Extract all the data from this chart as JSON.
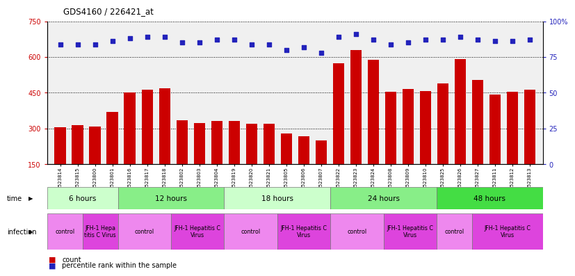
{
  "title": "GDS4160 / 226421_at",
  "samples": [
    "GSM523814",
    "GSM523815",
    "GSM523800",
    "GSM523801",
    "GSM523816",
    "GSM523817",
    "GSM523818",
    "GSM523802",
    "GSM523803",
    "GSM523804",
    "GSM523819",
    "GSM523820",
    "GSM523821",
    "GSM523805",
    "GSM523806",
    "GSM523807",
    "GSM523822",
    "GSM523823",
    "GSM523824",
    "GSM523808",
    "GSM523809",
    "GSM523810",
    "GSM523825",
    "GSM523826",
    "GSM523827",
    "GSM523811",
    "GSM523812",
    "GSM523813"
  ],
  "counts": [
    305,
    315,
    308,
    370,
    450,
    462,
    468,
    335,
    322,
    332,
    330,
    320,
    320,
    280,
    268,
    250,
    575,
    628,
    588,
    455,
    465,
    458,
    490,
    592,
    505,
    443,
    455,
    463
  ],
  "percentile": [
    84,
    84,
    84,
    86,
    88,
    89,
    89,
    85,
    85,
    87,
    87,
    84,
    84,
    80,
    82,
    78,
    89,
    91,
    87,
    84,
    85,
    87,
    87,
    89,
    87,
    86,
    86,
    87
  ],
  "time_groups": [
    {
      "label": "6 hours",
      "start": 0,
      "end": 4,
      "color": "#ccffcc"
    },
    {
      "label": "12 hours",
      "start": 4,
      "end": 10,
      "color": "#88ee88"
    },
    {
      "label": "18 hours",
      "start": 10,
      "end": 16,
      "color": "#ccffcc"
    },
    {
      "label": "24 hours",
      "start": 16,
      "end": 22,
      "color": "#88ee88"
    },
    {
      "label": "48 hours",
      "start": 22,
      "end": 28,
      "color": "#44dd44"
    }
  ],
  "infection_groups": [
    {
      "label": "control",
      "start": 0,
      "end": 2,
      "color": "#ee88ee"
    },
    {
      "label": "JFH-1 Hepa\ntitis C Virus",
      "start": 2,
      "end": 4,
      "color": "#dd44dd"
    },
    {
      "label": "control",
      "start": 4,
      "end": 7,
      "color": "#ee88ee"
    },
    {
      "label": "JFH-1 Hepatitis C\nVirus",
      "start": 7,
      "end": 10,
      "color": "#dd44dd"
    },
    {
      "label": "control",
      "start": 10,
      "end": 13,
      "color": "#ee88ee"
    },
    {
      "label": "JFH-1 Hepatitis C\nVirus",
      "start": 13,
      "end": 16,
      "color": "#dd44dd"
    },
    {
      "label": "control",
      "start": 16,
      "end": 19,
      "color": "#ee88ee"
    },
    {
      "label": "JFH-1 Hepatitis C\nVirus",
      "start": 19,
      "end": 22,
      "color": "#dd44dd"
    },
    {
      "label": "control",
      "start": 22,
      "end": 24,
      "color": "#ee88ee"
    },
    {
      "label": "JFH-1 Hepatitis C\nVirus",
      "start": 24,
      "end": 28,
      "color": "#dd44dd"
    }
  ],
  "bar_color": "#cc0000",
  "dot_color": "#2222bb",
  "ylim_left": [
    150,
    750
  ],
  "ylim_right": [
    0,
    100
  ],
  "yticks_left": [
    150,
    300,
    450,
    600,
    750
  ],
  "ytick_labels_left": [
    "150",
    "300",
    "450",
    "600",
    "750"
  ],
  "yticks_right": [
    0,
    25,
    50,
    75,
    100
  ],
  "ytick_labels_right": [
    "0",
    "25",
    "50",
    "75",
    "100%"
  ],
  "background_color": "#ffffff",
  "plot_bg_color": "#f0f0f0"
}
